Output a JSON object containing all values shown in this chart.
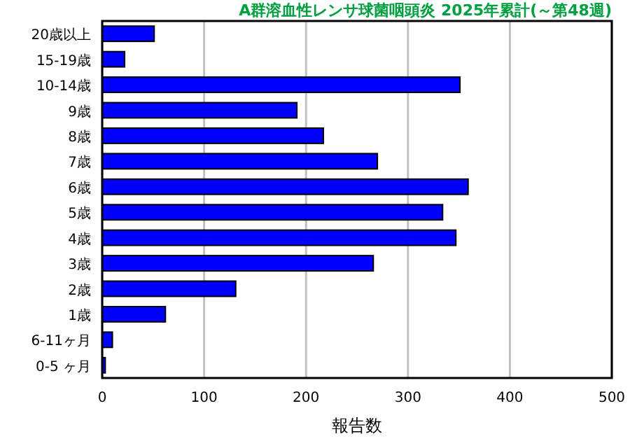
{
  "chart_data": {
    "type": "bar",
    "orientation": "horizontal",
    "title": "A群溶血性レンサ球菌咽頭炎 2025年累計(～第48週)",
    "xlabel": "報告数",
    "categories": [
      "20歳以上",
      "15-19歳",
      "10-14歳",
      "9歳",
      "8歳",
      "7歳",
      "6歳",
      "5歳",
      "4歳",
      "3歳",
      "2歳",
      "1歳",
      "6-11ヶ月",
      "0-5 ヶ月"
    ],
    "values": [
      51,
      22,
      351,
      191,
      217,
      270,
      359,
      334,
      347,
      266,
      131,
      62,
      10,
      3
    ],
    "color": "#0000ff",
    "xlim": [
      0,
      500
    ],
    "xticks": [
      0,
      100,
      200,
      300,
      400,
      500
    ],
    "grid": "x"
  }
}
